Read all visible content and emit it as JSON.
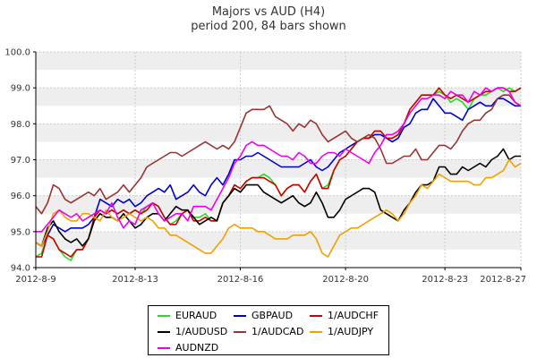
{
  "chart_data": {
    "type": "line",
    "title": "Majors vs AUD (H4)",
    "subtitle": "period 200, 84 bars shown",
    "xlabel": "",
    "ylabel": "",
    "ylim": [
      94.0,
      100.0
    ],
    "yticks": [
      "94.0",
      "95.0",
      "96.0",
      "97.0",
      "98.0",
      "99.0",
      "100.0"
    ],
    "xticks": [
      {
        "label": "2012-8-9",
        "index": 0
      },
      {
        "label": "2012-8-13",
        "index": 17
      },
      {
        "label": "2012-8-16",
        "index": 35
      },
      {
        "label": "2012-8-20",
        "index": 53
      },
      {
        "label": "2012-8-23",
        "index": 70
      },
      {
        "label": "2012-8-27",
        "index": 83
      }
    ],
    "grid": true,
    "legend_position": "bottom",
    "series": [
      {
        "name": "EURAUD",
        "color": "#22dd22",
        "values": [
          94.3,
          94.4,
          94.9,
          94.8,
          94.5,
          94.3,
          94.2,
          94.5,
          94.5,
          94.8,
          95.4,
          95.6,
          95.5,
          95.6,
          95.5,
          95.6,
          95.5,
          95.6,
          95.5,
          95.7,
          95.8,
          95.7,
          95.4,
          95.2,
          95.3,
          95.5,
          95.6,
          95.4,
          95.4,
          95.5,
          95.3,
          95.3,
          95.8,
          96.0,
          96.3,
          96.2,
          96.4,
          96.5,
          96.5,
          96.6,
          96.5,
          96.3,
          96.0,
          96.2,
          96.3,
          96.3,
          96.1,
          96.4,
          96.6,
          96.2,
          96.3,
          96.7,
          97.0,
          97.1,
          97.3,
          97.5,
          97.6,
          97.6,
          97.8,
          97.8,
          97.6,
          97.6,
          97.7,
          98.0,
          98.4,
          98.6,
          98.8,
          98.8,
          98.8,
          98.9,
          98.8,
          98.6,
          98.7,
          98.6,
          98.4,
          98.7,
          98.8,
          98.8,
          98.9,
          99.0,
          98.9,
          99.0,
          98.9,
          99.0
        ]
      },
      {
        "name": "GBPAUD",
        "color": "#0000cc",
        "values": [
          94.7,
          94.6,
          94.9,
          95.2,
          95.1,
          95.0,
          95.1,
          95.1,
          95.1,
          95.2,
          95.4,
          95.9,
          95.8,
          95.7,
          95.9,
          95.8,
          95.9,
          95.7,
          95.8,
          96.0,
          96.1,
          96.2,
          96.1,
          96.3,
          95.9,
          96.0,
          96.1,
          96.3,
          96.1,
          96.0,
          96.3,
          96.5,
          96.3,
          96.6,
          97.0,
          97.0,
          97.1,
          97.1,
          97.2,
          97.1,
          97.0,
          96.9,
          96.8,
          96.8,
          96.8,
          96.8,
          96.9,
          97.0,
          96.8,
          96.7,
          96.8,
          97.0,
          97.2,
          97.3,
          97.4,
          97.5,
          97.6,
          97.6,
          97.7,
          97.7,
          97.6,
          97.5,
          97.6,
          97.9,
          98.0,
          98.3,
          98.4,
          98.4,
          98.7,
          98.5,
          98.3,
          98.3,
          98.2,
          98.1,
          98.4,
          98.5,
          98.6,
          98.5,
          98.5,
          98.7,
          98.7,
          98.6,
          98.5,
          98.5
        ]
      },
      {
        "name": "1/AUDCHF",
        "color": "#cc0000",
        "values": [
          94.3,
          94.3,
          94.9,
          94.8,
          94.5,
          94.4,
          94.3,
          94.5,
          94.5,
          94.8,
          95.4,
          95.6,
          95.5,
          95.6,
          95.5,
          95.6,
          95.5,
          95.6,
          95.5,
          95.6,
          95.8,
          95.7,
          95.4,
          95.2,
          95.2,
          95.5,
          95.6,
          95.3,
          95.3,
          95.4,
          95.3,
          95.3,
          95.8,
          96.0,
          96.3,
          96.2,
          96.4,
          96.5,
          96.5,
          96.5,
          96.4,
          96.3,
          96.0,
          96.2,
          96.3,
          96.3,
          96.1,
          96.4,
          96.6,
          96.2,
          96.2,
          96.7,
          97.0,
          97.1,
          97.3,
          97.5,
          97.6,
          97.6,
          97.8,
          97.8,
          97.6,
          97.6,
          97.7,
          98.0,
          98.4,
          98.6,
          98.8,
          98.8,
          98.8,
          99.0,
          98.8,
          98.7,
          98.8,
          98.7,
          98.6,
          98.7,
          98.8,
          98.9,
          98.9,
          99.0,
          99.0,
          98.9,
          98.9,
          99.0
        ]
      },
      {
        "name": "1/AUDUSD",
        "color": "#000000",
        "values": [
          94.7,
          94.6,
          95.1,
          95.3,
          95.0,
          94.8,
          94.7,
          94.8,
          94.6,
          94.8,
          95.3,
          95.5,
          95.4,
          95.4,
          95.3,
          95.5,
          95.3,
          95.1,
          95.2,
          95.4,
          95.5,
          95.5,
          95.3,
          95.5,
          95.7,
          95.6,
          95.6,
          95.4,
          95.2,
          95.3,
          95.4,
          95.3,
          95.8,
          96.0,
          96.2,
          96.1,
          96.3,
          96.3,
          96.3,
          96.1,
          96.0,
          95.9,
          95.8,
          95.9,
          96.0,
          95.8,
          95.7,
          95.8,
          96.1,
          95.8,
          95.4,
          95.4,
          95.6,
          95.9,
          96.0,
          96.1,
          96.2,
          96.2,
          96.1,
          95.6,
          95.5,
          95.4,
          95.3,
          95.6,
          95.8,
          96.1,
          96.3,
          96.3,
          96.4,
          96.8,
          96.8,
          96.6,
          96.6,
          96.8,
          96.7,
          96.8,
          96.9,
          96.8,
          97.0,
          97.1,
          97.3,
          97.0,
          97.1,
          97.1
        ]
      },
      {
        "name": "1/AUDCAD",
        "color": "#993333",
        "values": [
          95.7,
          95.5,
          95.8,
          96.3,
          96.2,
          95.9,
          95.8,
          95.9,
          96.0,
          96.1,
          96.0,
          96.2,
          95.9,
          96.0,
          96.1,
          96.3,
          96.1,
          96.3,
          96.5,
          96.8,
          96.9,
          97.0,
          97.1,
          97.2,
          97.2,
          97.1,
          97.2,
          97.3,
          97.4,
          97.5,
          97.4,
          97.3,
          97.4,
          97.3,
          97.5,
          97.9,
          98.3,
          98.4,
          98.4,
          98.4,
          98.5,
          98.2,
          98.1,
          98.0,
          97.8,
          98.0,
          97.9,
          98.1,
          98.0,
          97.7,
          97.5,
          97.6,
          97.7,
          97.8,
          97.6,
          97.5,
          97.6,
          97.7,
          97.6,
          97.3,
          96.9,
          96.9,
          97.0,
          97.1,
          97.1,
          97.3,
          97.0,
          97.0,
          97.2,
          97.4,
          97.4,
          97.3,
          97.5,
          97.8,
          98.0,
          98.1,
          98.1,
          98.3,
          98.4,
          98.7,
          98.8,
          98.8,
          98.6,
          98.5
        ]
      },
      {
        "name": "1/AUDJPY",
        "color": "#f0a000",
        "values": [
          94.7,
          94.6,
          95.0,
          95.5,
          95.6,
          95.4,
          95.3,
          95.3,
          95.5,
          95.5,
          95.4,
          95.3,
          95.6,
          95.4,
          95.3,
          95.4,
          95.5,
          95.4,
          95.3,
          95.4,
          95.3,
          95.1,
          95.1,
          94.9,
          94.9,
          94.8,
          94.7,
          94.6,
          94.5,
          94.4,
          94.4,
          94.6,
          94.8,
          95.1,
          95.2,
          95.1,
          95.1,
          95.1,
          95.0,
          95.0,
          94.9,
          94.8,
          94.8,
          94.8,
          94.9,
          94.9,
          94.9,
          95.0,
          94.8,
          94.4,
          94.3,
          94.6,
          94.9,
          95.0,
          95.1,
          95.1,
          95.2,
          95.3,
          95.4,
          95.5,
          95.6,
          95.5,
          95.3,
          95.5,
          95.8,
          96.0,
          96.3,
          96.2,
          96.4,
          96.6,
          96.5,
          96.4,
          96.4,
          96.4,
          96.4,
          96.3,
          96.3,
          96.5,
          96.5,
          96.6,
          96.7,
          97.0,
          96.8,
          96.9
        ]
      },
      {
        "name": "AUDNZD",
        "color": "#ee00ee",
        "values": [
          95.0,
          95.0,
          95.2,
          95.4,
          95.6,
          95.5,
          95.4,
          95.5,
          95.3,
          95.4,
          95.5,
          95.6,
          95.5,
          95.8,
          95.4,
          95.1,
          95.3,
          95.2,
          95.6,
          95.7,
          95.8,
          95.5,
          95.3,
          95.4,
          95.5,
          95.5,
          95.3,
          95.7,
          95.7,
          95.7,
          95.6,
          95.9,
          96.2,
          96.5,
          96.9,
          97.1,
          97.4,
          97.5,
          97.4,
          97.4,
          97.3,
          97.2,
          97.1,
          97.1,
          97.0,
          97.2,
          97.1,
          96.9,
          96.9,
          97.1,
          97.2,
          97.2,
          97.1,
          97.3,
          97.2,
          97.1,
          97.0,
          96.9,
          97.2,
          97.4,
          97.7,
          97.7,
          97.8,
          98.0,
          98.3,
          98.5,
          98.7,
          98.7,
          98.8,
          98.8,
          98.7,
          98.9,
          98.8,
          98.8,
          98.6,
          98.9,
          98.8,
          99.0,
          98.9,
          99.0,
          99.0,
          98.9,
          98.6,
          98.5
        ]
      }
    ]
  }
}
